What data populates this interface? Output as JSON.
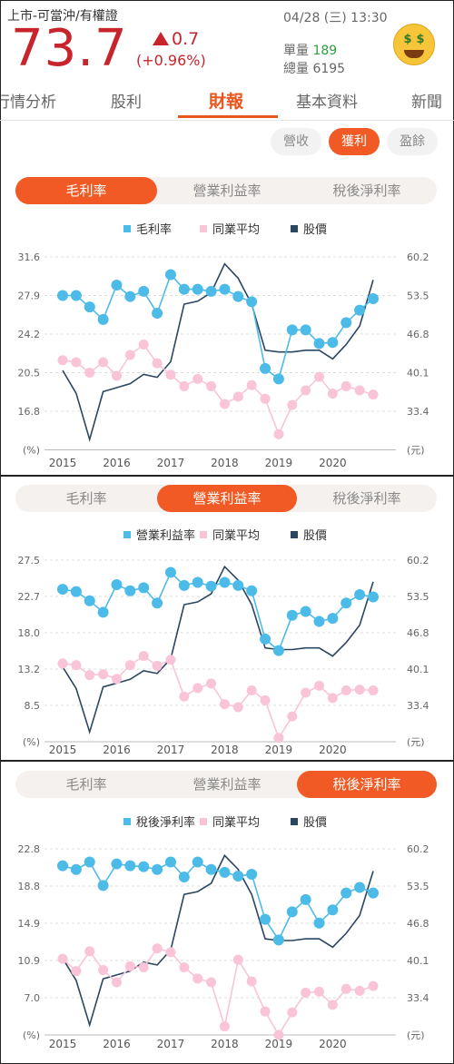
{
  "header": {
    "title": "上市-可當沖/有權證",
    "price": "73.7",
    "change": "0.7",
    "change_pct": "(+0.96%)",
    "datetime": "04/28 (三) 13:30",
    "volume_label": "單量",
    "volume_value": "189",
    "total_label": "總量",
    "total_value": "6195",
    "up_color": "#c8242c",
    "volume_color": "#2e9e3e",
    "icon": "money-face-emoji"
  },
  "nav": {
    "tabs": [
      "行情分析",
      "股利",
      "財報",
      "基本資料",
      "新聞"
    ],
    "active": "財報"
  },
  "subtabs": {
    "items": [
      "營收",
      "獲利",
      "盈餘"
    ],
    "active": "獲利"
  },
  "segments": [
    "毛利率",
    "營業利益率",
    "稅後淨利率"
  ],
  "colors": {
    "accent": "#f15a24",
    "metric": "#4dbbe8",
    "industry": "#f9c4d8",
    "price": "#2a4661",
    "grid": "#dddddd"
  },
  "chart_data": [
    {
      "type": "line",
      "active_segment": "毛利率",
      "legend": [
        "毛利率",
        "同業平均",
        "股價"
      ],
      "x_ticks": [
        "2015",
        "2016",
        "2017",
        "2018",
        "2019",
        "2020"
      ],
      "y_ticks": [
        "31.6",
        "27.9",
        "24.2",
        "20.5",
        "16.8",
        "(%)"
      ],
      "y2_ticks": [
        "60.2",
        "53.5",
        "46.8",
        "40.1",
        "33.4",
        "(元)"
      ],
      "ylim": [
        13.1,
        31.6
      ],
      "y2lim": [
        26.7,
        60.2
      ],
      "series": [
        {
          "name": "毛利率",
          "values": [
            27.9,
            27.9,
            26.8,
            25.6,
            28.9,
            27.8,
            28.3,
            26.2,
            29.9,
            28.5,
            28.5,
            28.3,
            28.5,
            27.8,
            27.3,
            20.9,
            19.9,
            24.6,
            24.6,
            23.3,
            23.4,
            25.3,
            26.5,
            27.6
          ]
        },
        {
          "name": "同業平均",
          "values": [
            21.7,
            21.5,
            20.5,
            21.5,
            20.2,
            22.2,
            23.2,
            21.4,
            20.3,
            19.2,
            19.9,
            19.2,
            17.5,
            18.2,
            19.3,
            18.0,
            14.6,
            17.4,
            18.8,
            20.1,
            18.5,
            19.2,
            18.8,
            18.4
          ]
        },
        {
          "name": "股價",
          "values": [
            40.5,
            36.5,
            28.5,
            36.8,
            37.5,
            38.2,
            39.8,
            39.3,
            42.0,
            52.0,
            52.5,
            54.0,
            59.0,
            56.5,
            52.0,
            44.0,
            43.7,
            43.7,
            44.0,
            44.0,
            42.5,
            45.0,
            48.2,
            56.2
          ]
        }
      ]
    },
    {
      "type": "line",
      "active_segment": "營業利益率",
      "legend": [
        "營業利益率",
        "同業平均",
        "股價"
      ],
      "x_ticks": [
        "2015",
        "2016",
        "2017",
        "2018",
        "2019",
        "2020"
      ],
      "y_ticks": [
        "27.5",
        "22.7",
        "18.0",
        "13.2",
        "8.5",
        "(%)"
      ],
      "y2_ticks": [
        "60.2",
        "53.5",
        "46.8",
        "40.1",
        "33.4",
        "(元)"
      ],
      "ylim": [
        3.8,
        27.5
      ],
      "y2lim": [
        26.7,
        60.2
      ],
      "series": [
        {
          "name": "營業利益率",
          "values": [
            23.7,
            23.4,
            22.2,
            20.7,
            24.3,
            23.5,
            23.9,
            21.9,
            25.9,
            24.2,
            24.6,
            24.1,
            24.6,
            24.2,
            23.5,
            17.2,
            15.7,
            20.3,
            20.8,
            19.5,
            19.9,
            21.9,
            23.0,
            22.7
          ]
        },
        {
          "name": "同業平均",
          "values": [
            14.0,
            13.8,
            12.5,
            12.6,
            12.0,
            13.8,
            15.0,
            13.7,
            14.5,
            9.7,
            10.8,
            11.4,
            8.7,
            8.3,
            10.5,
            9.2,
            4.3,
            7.1,
            10.2,
            11.1,
            9.5,
            10.5,
            10.6,
            10.5
          ]
        },
        {
          "name": "股價",
          "values": [
            40.5,
            36.5,
            28.5,
            36.8,
            37.5,
            38.2,
            39.8,
            39.3,
            42.0,
            52.0,
            52.5,
            54.0,
            59.0,
            56.5,
            52.0,
            44.0,
            43.7,
            43.7,
            44.0,
            44.0,
            42.5,
            45.0,
            48.2,
            56.2
          ]
        }
      ]
    },
    {
      "type": "line",
      "active_segment": "稅後淨利率",
      "legend": [
        "稅後淨利率",
        "同業平均",
        "股價"
      ],
      "x_ticks": [
        "2015",
        "2016",
        "2017",
        "2018",
        "2019",
        "2020"
      ],
      "y_ticks": [
        "22.8",
        "18.8",
        "14.9",
        "10.9",
        "7.0",
        "(%)"
      ],
      "y2_ticks": [
        "60.2",
        "53.5",
        "46.8",
        "40.1",
        "33.4",
        "(元)"
      ],
      "ylim": [
        3.0,
        22.8
      ],
      "y2lim": [
        26.7,
        60.2
      ],
      "series": [
        {
          "name": "稅後淨利率",
          "values": [
            21.0,
            20.6,
            21.4,
            18.9,
            21.2,
            21.0,
            20.9,
            20.6,
            21.4,
            19.8,
            21.4,
            20.6,
            20.3,
            19.9,
            20.1,
            15.3,
            13.1,
            16.1,
            17.4,
            14.9,
            16.3,
            18.1,
            18.7,
            18.1
          ]
        },
        {
          "name": "同業平均",
          "values": [
            11.1,
            9.8,
            11.9,
            9.9,
            8.6,
            10.3,
            10.2,
            12.2,
            11.8,
            10.2,
            9.0,
            8.6,
            3.9,
            11.0,
            8.7,
            5.5,
            3.0,
            5.4,
            7.5,
            7.6,
            6.2,
            7.9,
            7.7,
            8.2
          ]
        },
        {
          "name": "股價",
          "values": [
            40.5,
            36.5,
            28.5,
            36.8,
            37.5,
            38.2,
            39.8,
            39.3,
            42.0,
            52.0,
            52.5,
            54.0,
            59.0,
            56.5,
            52.0,
            44.0,
            43.7,
            43.7,
            44.0,
            44.0,
            42.5,
            45.0,
            48.2,
            56.2
          ]
        }
      ]
    }
  ]
}
